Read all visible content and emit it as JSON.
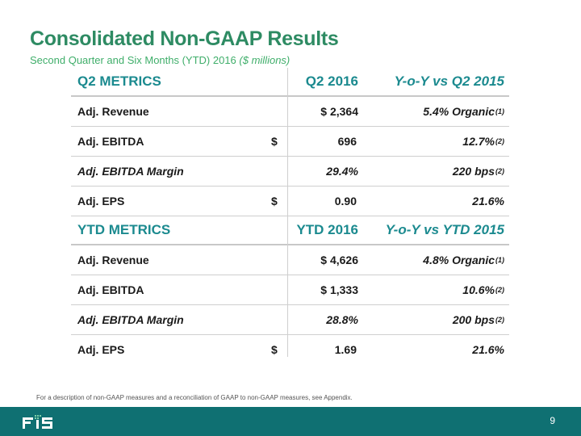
{
  "slide": {
    "title": "Consolidated Non-GAAP Results",
    "subtitle": "Second Quarter and Six Months (YTD) 2016 ",
    "subtitle_units": "($ millions)"
  },
  "q2": {
    "header": {
      "label": "Q2 METRICS",
      "value": "Q2 2016",
      "change": "Y-o-Y vs Q2 2015"
    },
    "rows": [
      {
        "label": "Adj. Revenue",
        "dollar": "$",
        "value": "2,364",
        "change": "5.4% Organic",
        "note": "(1)"
      },
      {
        "label": "Adj. EBITDA",
        "dollar": "$",
        "value": "696",
        "change": "12.7%",
        "note": "(2)"
      },
      {
        "label": "Adj. EBITDA Margin",
        "value": "29.4%",
        "change": "220 bps",
        "note": "(2)"
      },
      {
        "label": "Adj. EPS",
        "dollar": "$",
        "value": "0.90",
        "change": "21.6%"
      }
    ]
  },
  "ytd": {
    "header": {
      "label": "YTD METRICS",
      "value": "YTD 2016",
      "change": "Y-o-Y vs YTD 2015"
    },
    "rows": [
      {
        "label": "Adj. Revenue",
        "dollar": "$",
        "value": "4,626",
        "change": "4.8% Organic",
        "note": "(1)"
      },
      {
        "label": "Adj. EBITDA",
        "dollar": "$",
        "value": "1,333",
        "change": "10.6%",
        "note": "(2)"
      },
      {
        "label": "Adj. EBITDA Margin",
        "value": "28.8%",
        "change": "200 bps",
        "note": "(2)"
      },
      {
        "label": "Adj. EPS",
        "dollar": "$",
        "value": "1.69",
        "change": "21.6%"
      }
    ]
  },
  "footnote": "For a description of non-GAAP measures and a reconciliation of GAAP to non-GAAP measures, see Appendix.",
  "footer": {
    "page_number": "9",
    "logo_icon": "fis-logo-icon",
    "bar_color": "#0f7072"
  },
  "colors": {
    "title": "#2e8b63",
    "subtitle": "#3fae6a",
    "header": "#1b8a8f"
  }
}
